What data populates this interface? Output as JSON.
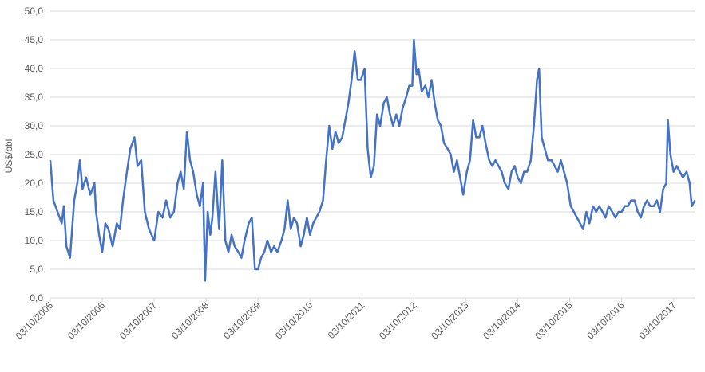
{
  "chart_data": {
    "type": "line",
    "y_label": "US$/bbl",
    "grid": true,
    "ylim": [
      0,
      50
    ],
    "yticks": [
      {
        "value": 0,
        "label": "0,0"
      },
      {
        "value": 5,
        "label": "5,0"
      },
      {
        "value": 10,
        "label": "10,0"
      },
      {
        "value": 15,
        "label": "15,0"
      },
      {
        "value": 20,
        "label": "20,0"
      },
      {
        "value": 25,
        "label": "25,0"
      },
      {
        "value": 30,
        "label": "30,0"
      },
      {
        "value": 35,
        "label": "35,0"
      },
      {
        "value": 40,
        "label": "40,0"
      },
      {
        "value": 45,
        "label": "45,0"
      },
      {
        "value": 50,
        "label": "50,0"
      }
    ],
    "xlim": [
      2005.75,
      2018.17
    ],
    "xticks": [
      {
        "value": 2005.75,
        "label": "03/10/2005"
      },
      {
        "value": 2006.75,
        "label": "03/10/2006"
      },
      {
        "value": 2007.75,
        "label": "03/10/2007"
      },
      {
        "value": 2008.75,
        "label": "03/10/2008"
      },
      {
        "value": 2009.75,
        "label": "03/10/2009"
      },
      {
        "value": 2010.75,
        "label": "03/10/2010"
      },
      {
        "value": 2011.75,
        "label": "03/10/2011"
      },
      {
        "value": 2012.75,
        "label": "03/10/2012"
      },
      {
        "value": 2013.75,
        "label": "03/10/2013"
      },
      {
        "value": 2014.75,
        "label": "03/10/2014"
      },
      {
        "value": 2015.75,
        "label": "03/10/2015"
      },
      {
        "value": 2016.75,
        "label": "03/10/2016"
      },
      {
        "value": 2017.75,
        "label": "03/10/2017"
      }
    ],
    "x": [
      2005.75,
      2005.81,
      2005.89,
      2005.97,
      2006.01,
      2006.06,
      2006.13,
      2006.21,
      2006.27,
      2006.32,
      2006.37,
      2006.44,
      2006.52,
      2006.6,
      2006.63,
      2006.69,
      2006.75,
      2006.81,
      2006.87,
      2006.95,
      2007.03,
      2007.09,
      2007.15,
      2007.21,
      2007.29,
      2007.37,
      2007.43,
      2007.5,
      2007.57,
      2007.65,
      2007.75,
      2007.83,
      2007.91,
      2007.98,
      2008.06,
      2008.13,
      2008.2,
      2008.26,
      2008.32,
      2008.38,
      2008.44,
      2008.5,
      2008.57,
      2008.63,
      2008.69,
      2008.73,
      2008.78,
      2008.83,
      2008.87,
      2008.93,
      2009.0,
      2009.06,
      2009.12,
      2009.18,
      2009.24,
      2009.3,
      2009.37,
      2009.43,
      2009.49,
      2009.57,
      2009.63,
      2009.69,
      2009.75,
      2009.81,
      2009.87,
      2009.93,
      2010.0,
      2010.06,
      2010.12,
      2010.2,
      2010.26,
      2010.32,
      2010.38,
      2010.44,
      2010.5,
      2010.57,
      2010.63,
      2010.69,
      2010.75,
      2010.81,
      2010.87,
      2010.93,
      2011.0,
      2011.06,
      2011.12,
      2011.18,
      2011.24,
      2011.3,
      2011.37,
      2011.43,
      2011.49,
      2011.55,
      2011.61,
      2011.67,
      2011.73,
      2011.8,
      2011.86,
      2011.92,
      2011.98,
      2012.04,
      2012.1,
      2012.17,
      2012.23,
      2012.29,
      2012.35,
      2012.41,
      2012.47,
      2012.53,
      2012.6,
      2012.66,
      2012.72,
      2012.75,
      2012.8,
      2012.84,
      2012.9,
      2012.97,
      2013.03,
      2013.09,
      2013.15,
      2013.21,
      2013.27,
      2013.33,
      2013.4,
      2013.46,
      2013.52,
      2013.58,
      2013.64,
      2013.7,
      2013.77,
      2013.83,
      2013.89,
      2013.95,
      2014.01,
      2014.07,
      2014.13,
      2014.2,
      2014.26,
      2014.32,
      2014.38,
      2014.44,
      2014.5,
      2014.57,
      2014.63,
      2014.69,
      2014.75,
      2014.81,
      2014.87,
      2014.93,
      2015.0,
      2015.06,
      2015.12,
      2015.16,
      2015.21,
      2015.27,
      2015.33,
      2015.4,
      2015.46,
      2015.52,
      2015.58,
      2015.64,
      2015.7,
      2015.77,
      2015.83,
      2015.89,
      2015.95,
      2016.01,
      2016.07,
      2016.13,
      2016.2,
      2016.26,
      2016.32,
      2016.38,
      2016.44,
      2016.5,
      2016.57,
      2016.63,
      2016.69,
      2016.75,
      2016.81,
      2016.87,
      2016.93,
      2017.0,
      2017.06,
      2017.12,
      2017.18,
      2017.24,
      2017.3,
      2017.37,
      2017.43,
      2017.49,
      2017.55,
      2017.61,
      2017.64,
      2017.69,
      2017.75,
      2017.81,
      2017.87,
      2017.93,
      2018.0,
      2018.06,
      2018.1,
      2018.16
    ],
    "series": [
      {
        "color": "#4472c4",
        "values": [
          24,
          17,
          15,
          13,
          16,
          9,
          7,
          17,
          20,
          24,
          19,
          21,
          18,
          20,
          15,
          11,
          8,
          13,
          12,
          9,
          13,
          12,
          17,
          21,
          26,
          28,
          23,
          24,
          15,
          12,
          10,
          15,
          14,
          17,
          14,
          15,
          20,
          22,
          19,
          29,
          24,
          22,
          18,
          16,
          20,
          3,
          15,
          11,
          14,
          22,
          12,
          24,
          10,
          8,
          11,
          9,
          8,
          7,
          10,
          13,
          14,
          5,
          5,
          7,
          8,
          10,
          8,
          9,
          8,
          10,
          12,
          17,
          12,
          14,
          13,
          9,
          11,
          14,
          11,
          13,
          14,
          15,
          17,
          24,
          30,
          26,
          29,
          27,
          28,
          31,
          34,
          38,
          43,
          38,
          38,
          40,
          26,
          21,
          23,
          32,
          30,
          34,
          35,
          32,
          30,
          32,
          30,
          33,
          35,
          37,
          37,
          45,
          39,
          40,
          36,
          37,
          35,
          38,
          34,
          31,
          30,
          27,
          26,
          25,
          22,
          24,
          21,
          18,
          22,
          24,
          31,
          28,
          28,
          30,
          27,
          24,
          23,
          24,
          23,
          22,
          20,
          19,
          22,
          23,
          21,
          20,
          22,
          22,
          24,
          30,
          38,
          40,
          28,
          26,
          24,
          24,
          23,
          22,
          24,
          22,
          20,
          16,
          15,
          14,
          13,
          12,
          15,
          13,
          16,
          15,
          16,
          15,
          14,
          16,
          15,
          14,
          15,
          15,
          16,
          16,
          17,
          17,
          15,
          14,
          16,
          17,
          16,
          16,
          17,
          15,
          19,
          20,
          31,
          25,
          22,
          23,
          22,
          21,
          22,
          20,
          16,
          17
        ]
      }
    ]
  }
}
